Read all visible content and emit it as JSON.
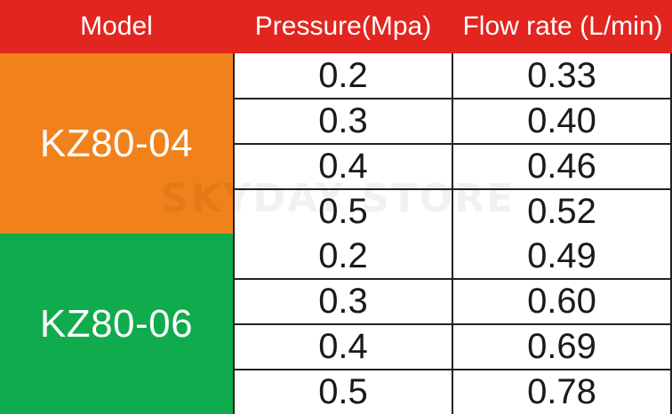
{
  "colors": {
    "header_bg": "#e2251f",
    "group1_bg": "#f1821b",
    "group2_bg": "#0fab4c"
  },
  "header": {
    "model": "Model",
    "pressure": "Pressure(Mpa)",
    "flow": "Flow rate (L/min)"
  },
  "groups": [
    {
      "model": "KZ80-04",
      "rows": [
        {
          "pressure": "0.2",
          "flow": "0.33"
        },
        {
          "pressure": "0.3",
          "flow": "0.40"
        },
        {
          "pressure": "0.4",
          "flow": "0.46"
        },
        {
          "pressure": "0.5",
          "flow": "0.52"
        }
      ]
    },
    {
      "model": "KZ80-06",
      "rows": [
        {
          "pressure": "0.2",
          "flow": "0.49"
        },
        {
          "pressure": "0.3",
          "flow": "0.60"
        },
        {
          "pressure": "0.4",
          "flow": "0.69"
        },
        {
          "pressure": "0.5",
          "flow": "0.78"
        }
      ]
    }
  ],
  "watermark": "SKYDAY STORE"
}
